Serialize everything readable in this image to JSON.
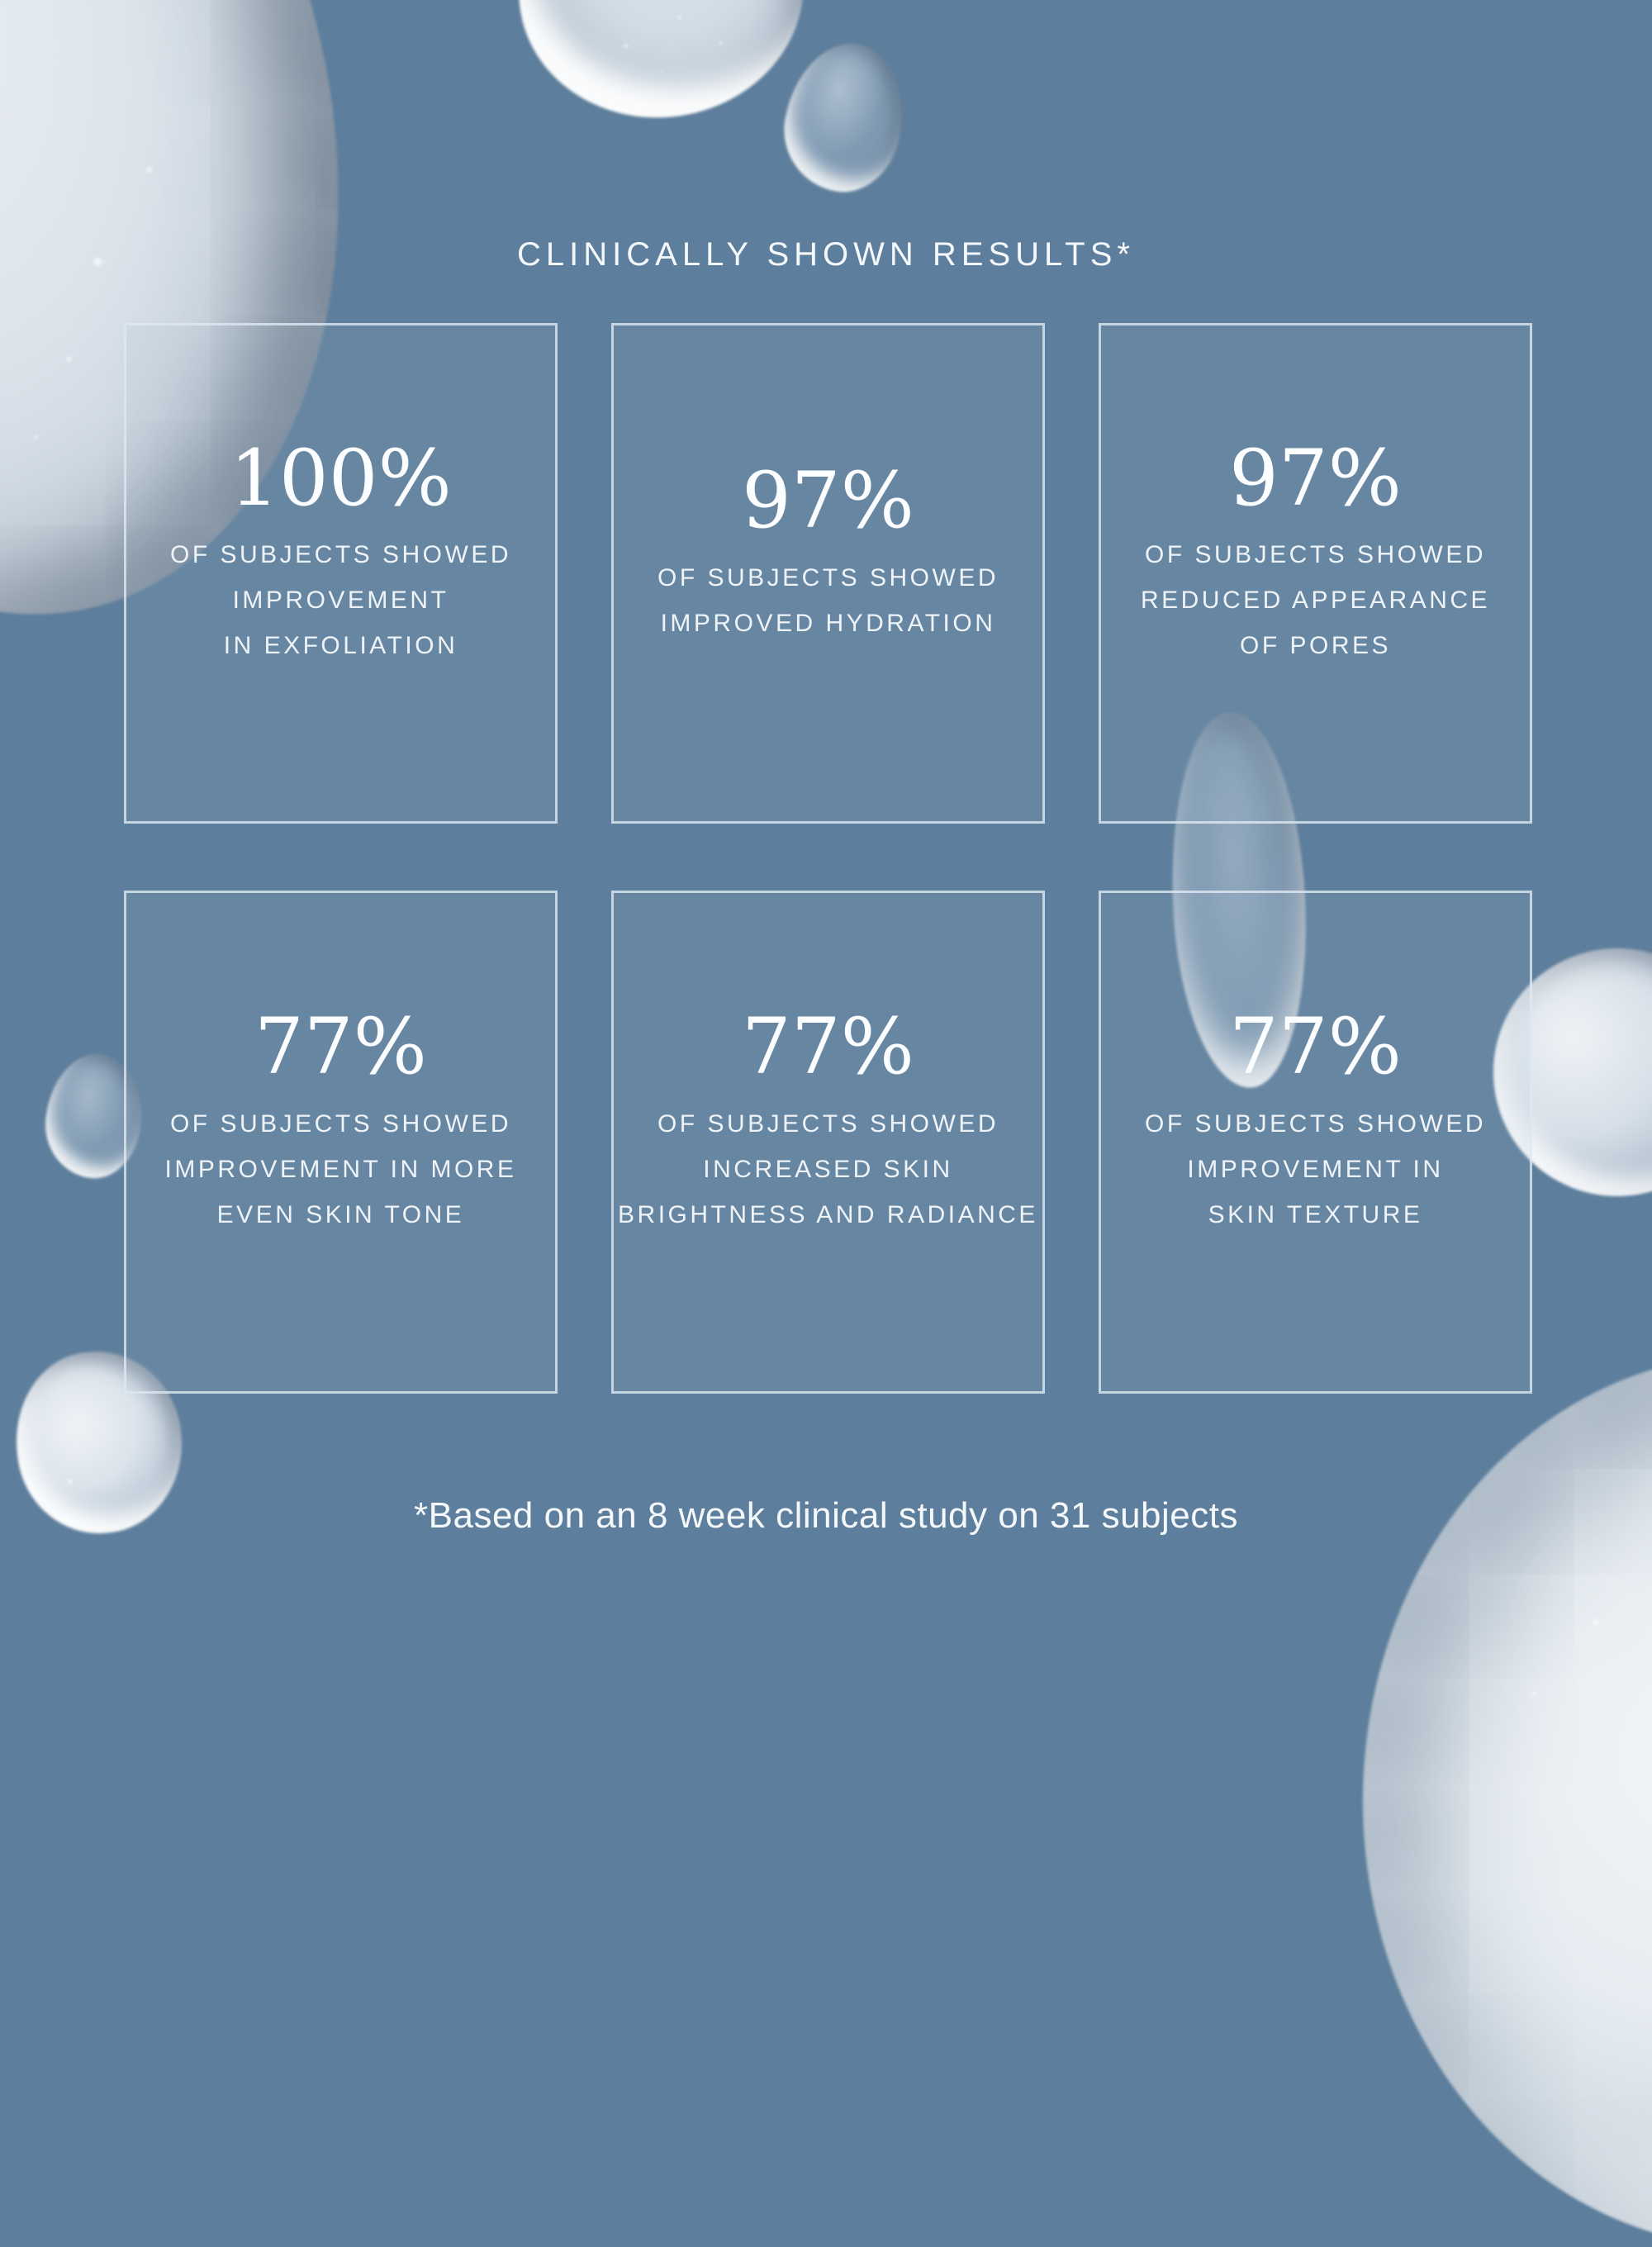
{
  "colors": {
    "background": "#5d7e9c",
    "card_border": "#dfe9f3",
    "text": "#f4f8fb",
    "droplet_silver": "#dde5ec",
    "droplet_rim": "#8496a9"
  },
  "title": "CLINICALLY SHOWN RESULTS*",
  "footnote": "*Based on an 8 week clinical study on 31 subjects",
  "stats": [
    {
      "value": "100%",
      "lines": [
        "OF SUBJECTS SHOWED",
        "IMPROVEMENT",
        "IN EXFOLIATION"
      ]
    },
    {
      "value": "97%",
      "lines": [
        "OF SUBJECTS SHOWED",
        "IMPROVED HYDRATION"
      ]
    },
    {
      "value": "97%",
      "lines": [
        "OF SUBJECTS SHOWED",
        "REDUCED APPEARANCE",
        "OF PORES"
      ]
    },
    {
      "value": "77%",
      "lines": [
        "OF SUBJECTS SHOWED",
        "IMPROVEMENT IN MORE",
        "EVEN SKIN TONE"
      ]
    },
    {
      "value": "77%",
      "lines": [
        "OF SUBJECTS SHOWED",
        "INCREASED SKIN",
        "BRIGHTNESS AND RADIANCE"
      ]
    },
    {
      "value": "77%",
      "lines": [
        "OF SUBJECTS SHOWED",
        "IMPROVEMENT IN",
        "SKIN TEXTURE"
      ]
    }
  ]
}
